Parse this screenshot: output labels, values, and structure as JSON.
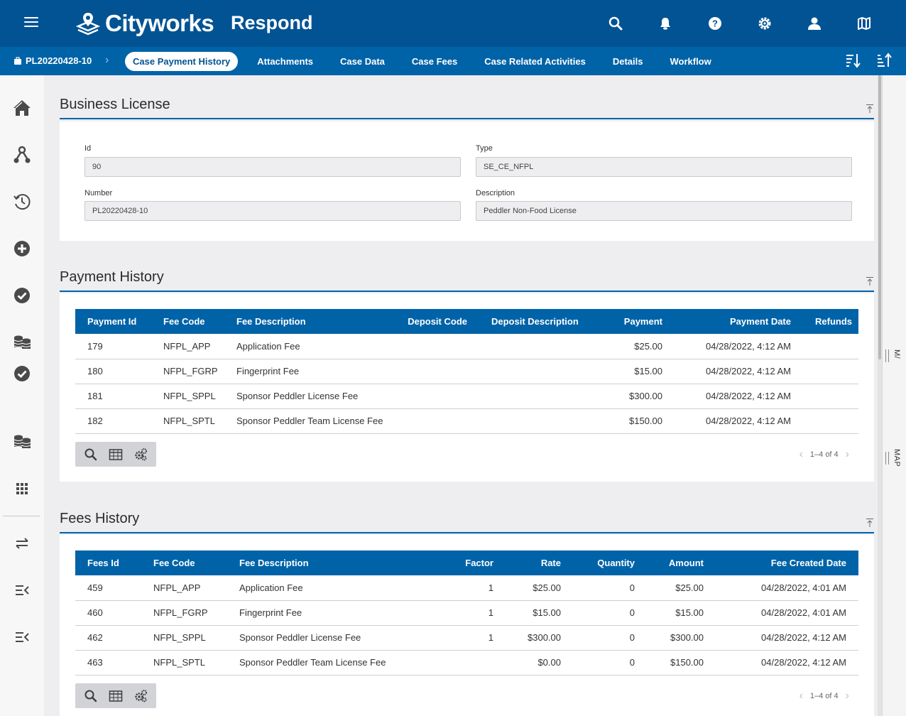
{
  "header": {
    "logo_text": "Cityworks",
    "app_name": "Respond",
    "icons": [
      "search-icon",
      "bell-icon",
      "help-icon",
      "settings-icon",
      "user-icon",
      "map-icon"
    ]
  },
  "subnav": {
    "case_id": "PL20220428-10",
    "tabs": [
      {
        "label": "Case Payment History",
        "active": true
      },
      {
        "label": "Attachments"
      },
      {
        "label": "Case Data"
      },
      {
        "label": "Case Fees"
      },
      {
        "label": "Case Related Activities"
      },
      {
        "label": "Details"
      },
      {
        "label": "Workflow"
      }
    ]
  },
  "leftrail": {
    "icons": [
      "home-icon",
      "hierarchy-icon",
      "history-icon",
      "add-circle-icon",
      "check-circle-icon",
      "coins-icon",
      "check-circle-icon",
      "coins-icon",
      "apps-grid-icon",
      "swap-icon",
      "collapse-menu-icon",
      "collapse-menu-icon"
    ]
  },
  "rightrail": {
    "labels": [
      "M/",
      "MAP"
    ]
  },
  "business_license": {
    "title": "Business License",
    "fields": {
      "id_label": "Id",
      "id_value": "90",
      "type_label": "Type",
      "type_value": "SE_CE_NFPL",
      "number_label": "Number",
      "number_value": "PL20220428-10",
      "description_label": "Description",
      "description_value": "Peddler Non-Food License"
    }
  },
  "payment_history": {
    "title": "Payment History",
    "columns": [
      "Payment Id",
      "Fee Code",
      "Fee Description",
      "Deposit Code",
      "Deposit Description",
      "Payment",
      "Payment Date",
      "Refunds"
    ],
    "rows": [
      [
        "179",
        "NFPL_APP",
        "Application Fee",
        "",
        "",
        "$25.00",
        "04/28/2022, 4:12 AM",
        ""
      ],
      [
        "180",
        "NFPL_FGRP",
        "Fingerprint Fee",
        "",
        "",
        "$15.00",
        "04/28/2022, 4:12 AM",
        ""
      ],
      [
        "181",
        "NFPL_SPPL",
        "Sponsor Peddler License Fee",
        "",
        "",
        "$300.00",
        "04/28/2022, 4:12 AM",
        ""
      ],
      [
        "182",
        "NFPL_SPTL",
        "Sponsor Peddler Team License Fee",
        "",
        "",
        "$150.00",
        "04/28/2022, 4:12 AM",
        ""
      ]
    ],
    "pager": "1–4 of 4"
  },
  "fees_history": {
    "title": "Fees History",
    "columns": [
      "Fees Id",
      "Fee Code",
      "Fee Description",
      "Factor",
      "Rate",
      "Quantity",
      "Amount",
      "Fee Created Date"
    ],
    "rows": [
      [
        "459",
        "NFPL_APP",
        "Application Fee",
        "1",
        "$25.00",
        "0",
        "$25.00",
        "04/28/2022, 4:01 AM"
      ],
      [
        "460",
        "NFPL_FGRP",
        "Fingerprint Fee",
        "1",
        "$15.00",
        "0",
        "$15.00",
        "04/28/2022, 4:01 AM"
      ],
      [
        "462",
        "NFPL_SPPL",
        "Sponsor Peddler License Fee",
        "1",
        "$300.00",
        "0",
        "$300.00",
        "04/28/2022, 4:12 AM"
      ],
      [
        "463",
        "NFPL_SPTL",
        "Sponsor Peddler Team License Fee",
        "",
        "$0.00",
        "0",
        "$150.00",
        "04/28/2022, 4:12 AM"
      ]
    ],
    "pager": "1–4 of 4"
  },
  "colors": {
    "header_bg": "#025394",
    "subnav_bg": "#0063a8",
    "table_header_bg": "#0063a8"
  }
}
